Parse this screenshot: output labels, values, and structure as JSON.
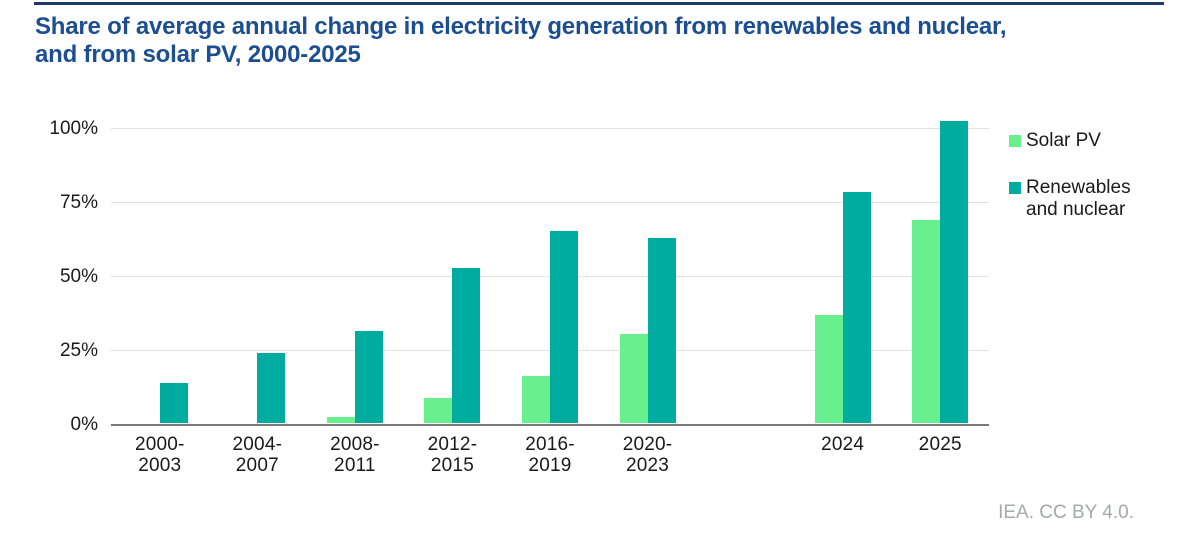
{
  "title_line1": "Share of average annual change in electricity generation from renewables and nuclear,",
  "title_line2": "and from solar PV, 2000-2025",
  "footer": "IEA. CC BY 4.0.",
  "legend": [
    {
      "label": "Solar PV",
      "color": "#68EF8E"
    },
    {
      "label": "Renewables\nand nuclear",
      "color": "#00ABA0"
    }
  ],
  "colors": {
    "title_blue": "#1C4E92",
    "top_rule_navy": "#1F3864",
    "solar_green": "#68EF8E",
    "renewables_teal": "#00ABA0",
    "gridline_gray": "#E2E2E2",
    "axis_gray": "#7A7A7A",
    "footer_gray": "#A4A9AD"
  },
  "chart_data": {
    "type": "bar",
    "title": "Share of average annual change in electricity generation from renewables and nuclear, and from solar PV, 2000-2025",
    "categories": [
      "2000-\n2003",
      "2004-\n2007",
      "2008-\n2011",
      "2012-\n2015",
      "2016-\n2019",
      "2020-\n2023",
      "2024",
      "2025"
    ],
    "series": [
      {
        "name": "Solar PV",
        "color": "#68EF8E",
        "values": [
          0,
          0,
          2,
          8.5,
          16,
          30,
          36.5,
          68.5
        ]
      },
      {
        "name": "Renewables and nuclear",
        "color": "#00ABA0",
        "values": [
          13.5,
          23.5,
          31,
          52.5,
          65,
          62.5,
          78,
          102
        ]
      }
    ],
    "xlabel": "",
    "ylabel": "",
    "yticks": [
      0,
      25,
      50,
      75,
      100
    ],
    "ytick_labels": [
      "0%",
      "25%",
      "50%",
      "75%",
      "100%"
    ],
    "ylim": [
      0,
      100
    ],
    "grid": "horizontal",
    "legend_position": "right",
    "gap_slot_after_index": 5,
    "total_slots": 9
  }
}
